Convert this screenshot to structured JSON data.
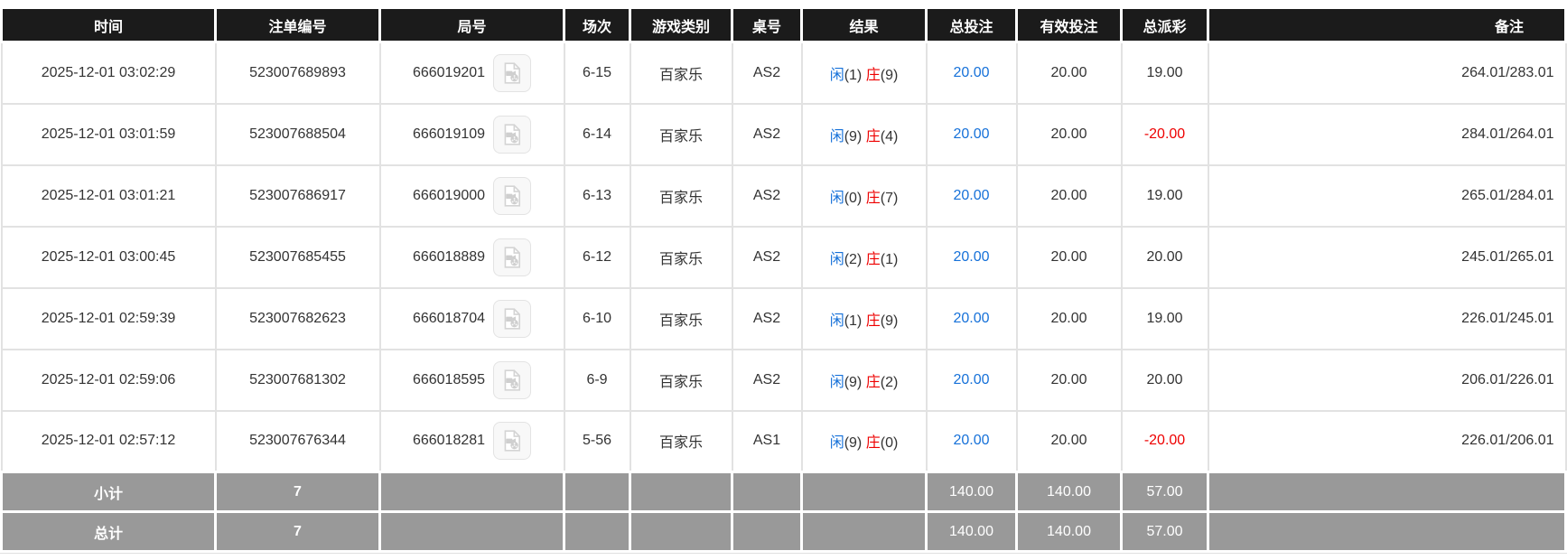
{
  "colors": {
    "header_bg": "#1b1b1b",
    "header_text": "#ffffff",
    "body_text": "#333333",
    "grid_line": "#e2e2e2",
    "footer_bg": "#999999",
    "footer_text": "#ffffff",
    "blue": "#1671d9",
    "red": "#ee0000"
  },
  "icons": {
    "video_replay_icon": "document page with video camera and film reel (replay video button)"
  },
  "table": {
    "columns": [
      {
        "key": "time",
        "label": "时间"
      },
      {
        "key": "bet_id",
        "label": "注单编号"
      },
      {
        "key": "round",
        "label": "局号"
      },
      {
        "key": "session",
        "label": "场次"
      },
      {
        "key": "game_type",
        "label": "游戏类别"
      },
      {
        "key": "table_no",
        "label": "桌号"
      },
      {
        "key": "result",
        "label": "结果"
      },
      {
        "key": "total_bet",
        "label": "总投注"
      },
      {
        "key": "valid_bet",
        "label": "有效投注"
      },
      {
        "key": "payout",
        "label": "总派彩"
      },
      {
        "key": "remark",
        "label": "备注"
      }
    ],
    "rows": [
      {
        "time": "2025-12-01 03:02:29",
        "bet_id": "523007689893",
        "round": "666019201",
        "session": "6-15",
        "game_type": "百家乐",
        "table_no": "AS2",
        "result": {
          "player_label": "闲",
          "player_score": "1",
          "banker_label": "庄",
          "banker_score": "9"
        },
        "total_bet": "20.00",
        "valid_bet": "20.00",
        "payout": "19.00",
        "remark": "264.01/283.01"
      },
      {
        "time": "2025-12-01 03:01:59",
        "bet_id": "523007688504",
        "round": "666019109",
        "session": "6-14",
        "game_type": "百家乐",
        "table_no": "AS2",
        "result": {
          "player_label": "闲",
          "player_score": "9",
          "banker_label": "庄",
          "banker_score": "4"
        },
        "total_bet": "20.00",
        "valid_bet": "20.00",
        "payout": "-20.00",
        "remark": "284.01/264.01"
      },
      {
        "time": "2025-12-01 03:01:21",
        "bet_id": "523007686917",
        "round": "666019000",
        "session": "6-13",
        "game_type": "百家乐",
        "table_no": "AS2",
        "result": {
          "player_label": "闲",
          "player_score": "0",
          "banker_label": "庄",
          "banker_score": "7"
        },
        "total_bet": "20.00",
        "valid_bet": "20.00",
        "payout": "19.00",
        "remark": "265.01/284.01"
      },
      {
        "time": "2025-12-01 03:00:45",
        "bet_id": "523007685455",
        "round": "666018889",
        "session": "6-12",
        "game_type": "百家乐",
        "table_no": "AS2",
        "result": {
          "player_label": "闲",
          "player_score": "2",
          "banker_label": "庄",
          "banker_score": "1"
        },
        "total_bet": "20.00",
        "valid_bet": "20.00",
        "payout": "20.00",
        "remark": "245.01/265.01"
      },
      {
        "time": "2025-12-01 02:59:39",
        "bet_id": "523007682623",
        "round": "666018704",
        "session": "6-10",
        "game_type": "百家乐",
        "table_no": "AS2",
        "result": {
          "player_label": "闲",
          "player_score": "1",
          "banker_label": "庄",
          "banker_score": "9"
        },
        "total_bet": "20.00",
        "valid_bet": "20.00",
        "payout": "19.00",
        "remark": "226.01/245.01"
      },
      {
        "time": "2025-12-01 02:59:06",
        "bet_id": "523007681302",
        "round": "666018595",
        "session": "6-9",
        "game_type": "百家乐",
        "table_no": "AS2",
        "result": {
          "player_label": "闲",
          "player_score": "9",
          "banker_label": "庄",
          "banker_score": "2"
        },
        "total_bet": "20.00",
        "valid_bet": "20.00",
        "payout": "20.00",
        "remark": "206.01/226.01"
      },
      {
        "time": "2025-12-01 02:57:12",
        "bet_id": "523007676344",
        "round": "666018281",
        "session": "5-56",
        "game_type": "百家乐",
        "table_no": "AS1",
        "result": {
          "player_label": "闲",
          "player_score": "9",
          "banker_label": "庄",
          "banker_score": "0"
        },
        "total_bet": "20.00",
        "valid_bet": "20.00",
        "payout": "-20.00",
        "remark": "226.01/206.01"
      }
    ],
    "footer": [
      {
        "label": "小计",
        "count": "7",
        "total_bet": "140.00",
        "valid_bet": "140.00",
        "payout": "57.00"
      },
      {
        "label": "总计",
        "count": "7",
        "total_bet": "140.00",
        "valid_bet": "140.00",
        "payout": "57.00"
      }
    ]
  }
}
